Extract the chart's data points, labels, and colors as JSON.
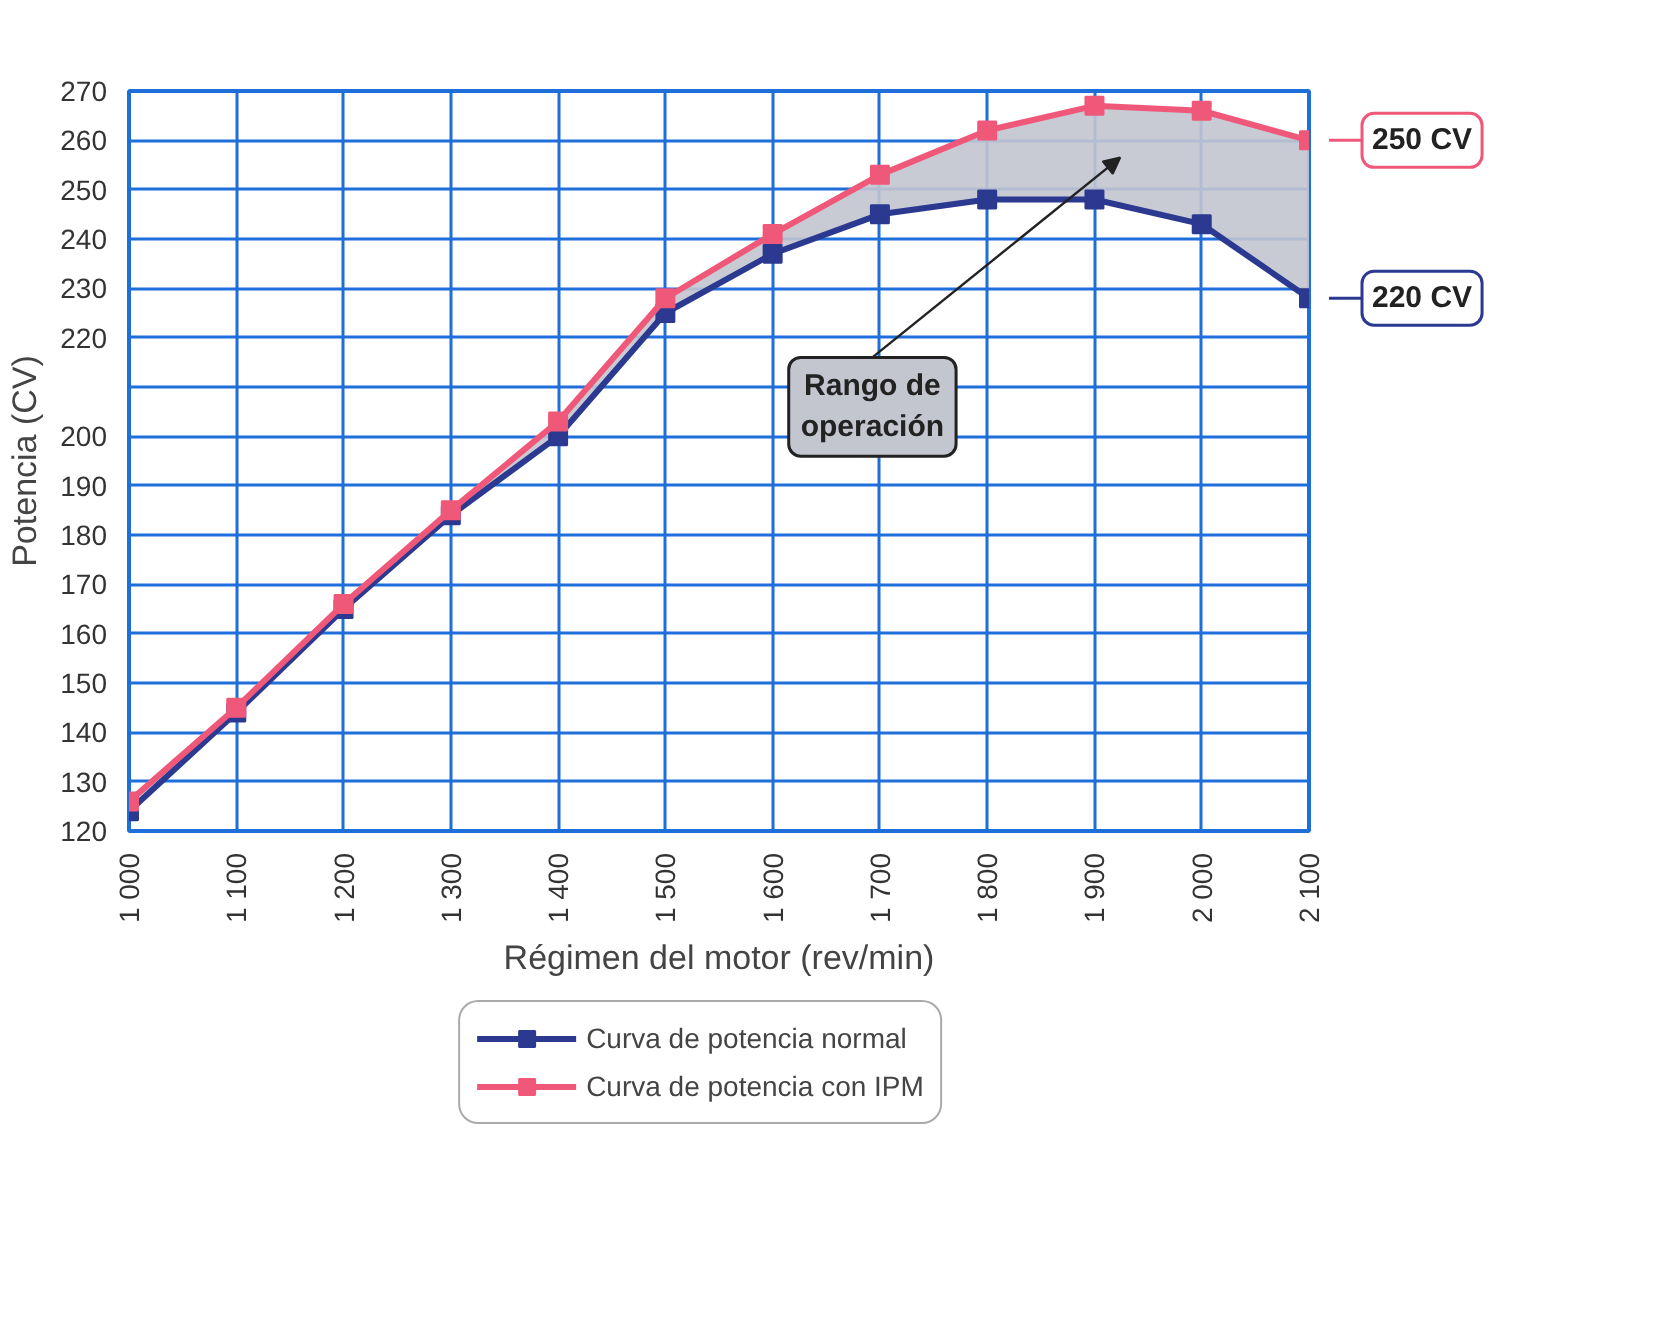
{
  "chart_data": {
    "type": "line",
    "xlabel": "Régimen del motor (rev/min)",
    "ylabel": "Potencia (CV)",
    "x": [
      1000,
      1100,
      1200,
      1300,
      1400,
      1500,
      1600,
      1700,
      1800,
      1900,
      2000,
      2100
    ],
    "xlim": [
      1000,
      2100
    ],
    "xticks": [
      {
        "value": 1000,
        "label": "1 000"
      },
      {
        "value": 1100,
        "label": "1 100"
      },
      {
        "value": 1200,
        "label": "1 200"
      },
      {
        "value": 1300,
        "label": "1 300"
      },
      {
        "value": 1400,
        "label": "1 400"
      },
      {
        "value": 1500,
        "label": "1 500"
      },
      {
        "value": 1600,
        "label": "1 600"
      },
      {
        "value": 1700,
        "label": "1 700"
      },
      {
        "value": 1800,
        "label": "1 800"
      },
      {
        "value": 1900,
        "label": "1 900"
      },
      {
        "value": 2000,
        "label": "2 000"
      },
      {
        "value": 2100,
        "label": "2 100"
      }
    ],
    "ylim": [
      120,
      270
    ],
    "yticks": [
      120,
      130,
      140,
      150,
      160,
      170,
      180,
      190,
      200,
      {
        "value": 210,
        "label": null
      },
      220,
      230,
      240,
      250,
      260,
      270
    ],
    "series": [
      {
        "name": "Curva de potencia normal",
        "color": "#2b3990",
        "values": [
          124,
          144,
          165,
          184,
          200,
          225,
          237,
          245,
          248,
          248,
          243,
          228
        ]
      },
      {
        "name": "Curva de potencia con IPM",
        "color": "#f0587a",
        "values": [
          126,
          145,
          166,
          185,
          203,
          228,
          241,
          253,
          262,
          267,
          266,
          260
        ],
        "lower": [
          124,
          144,
          165,
          184,
          200,
          225,
          237,
          245,
          248,
          248,
          243,
          228
        ],
        "upper": [
          126,
          145,
          166,
          185,
          203,
          228,
          241,
          253,
          262,
          267,
          266,
          260
        ]
      }
    ],
    "annotations": [
      "Rango de\noperación",
      {
        "text": "250 CV",
        "x": 2100,
        "y": 260
      },
      {
        "text": "220 CV",
        "x": 2100,
        "y": 228
      }
    ],
    "grid": true,
    "legend": "bottom",
    "marker": "square",
    "line_style": "solid"
  }
}
